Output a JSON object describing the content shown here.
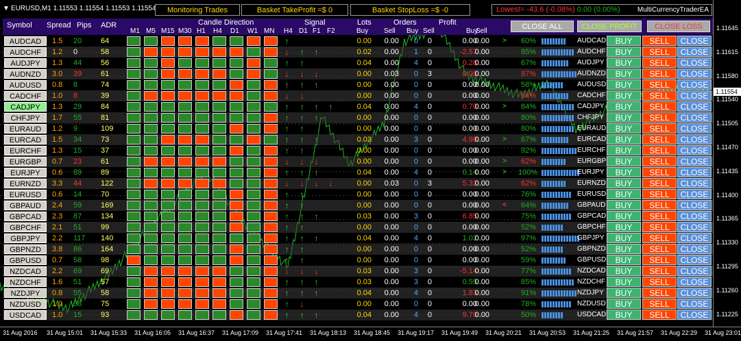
{
  "topbar": {
    "symbol_title": "EURUSD,M1  1.11553 1.11554 1.11553 1.11554",
    "monitoring": "Monitoring Trades",
    "basket_tp": "Basket TakeProfit =$ 0",
    "basket_sl": "Basket StopLoss =$ -0",
    "lowest_label": "Lowest= -43.6",
    "lowest_pct": "(-0.08%)",
    "highest_part": "0.00 (0.00%)",
    "ea_name": "MultiCurrencyTraderEA"
  },
  "header": {
    "symbol": "Symbol",
    "spread": "Spread",
    "pips": "Pips",
    "adr": "ADR",
    "candle_direction": "Candle Direction",
    "timeframes": [
      "M1",
      "M5",
      "M15",
      "M30",
      "H1",
      "H4",
      "D1",
      "W1",
      "MN"
    ],
    "signal": "Signal",
    "signal_cols": [
      "H4",
      "D1",
      "F1",
      "F2"
    ],
    "lots": "Lots",
    "orders": "Orders",
    "profit": "Profit",
    "buy": "Buy",
    "sell": "Sell",
    "close_all": "CLOSE ALL",
    "close_profit": "CLOSE PROFIT",
    "close_loss": "CLOSE LOSS"
  },
  "buttons": {
    "buy": "BUY",
    "sell": "SELL",
    "close": "CLOSE"
  },
  "colors": {
    "green": "#2a8a2a",
    "orange": "#ff4500",
    "buy_btn": "#3cb371",
    "close_btn": "#5a8fd8"
  },
  "rows": [
    {
      "sym": "AUDCAD",
      "spread": "1.5",
      "pips": "20",
      "pips_c": "#1fae1f",
      "adr": "64",
      "candles": "ggoooggoo",
      "sig": [
        "u",
        "",
        "",
        ""
      ],
      "lb": "0.00",
      "ls": "0.00",
      "ob": "0",
      "os": "0",
      "pb": "0.00",
      "pb_c": "#ffffff",
      "ps": "0.00",
      "tri": ">",
      "tri_c": "#1fae1f",
      "pct": "60%",
      "pct_c": "#1fae1f",
      "bars": 9,
      "pair": "AUDCAD"
    },
    {
      "sym": "AUDCHF",
      "spread": "1.2",
      "pips": "0",
      "pips_c": "#ffffff",
      "adr": "58",
      "candles": "goooooogo",
      "sig": [
        "d",
        "u",
        "u",
        ""
      ],
      "lb": "0.02",
      "ls": "0.00",
      "ob": "1",
      "os": "0",
      "pb": "-2.57",
      "pb_c": "#ff3030",
      "ps": "0.00",
      "tri": "",
      "tri_c": "",
      "pct": "85%",
      "pct_c": "#1fae1f",
      "bars": 12,
      "pair": "AUDCHF"
    },
    {
      "sym": "AUDJPY",
      "spread": "1.3",
      "pips": "44",
      "pips_c": "#1fae1f",
      "adr": "56",
      "candles": "ggoggggog",
      "sig": [
        "u",
        "u",
        "",
        ""
      ],
      "lb": "0.04",
      "ls": "0.00",
      "ob": "4",
      "os": "0",
      "pb": "0.28",
      "pb_c": "#ff3030",
      "ps": "0.00",
      "tri": "",
      "tri_c": "",
      "pct": "67%",
      "pct_c": "#1fae1f",
      "bars": 10,
      "pair": "AUDJPY"
    },
    {
      "sym": "AUDNZD",
      "spread": "3.0",
      "pips": "39",
      "pips_c": "#ff3030",
      "adr": "61",
      "candles": "ggoooogog",
      "sig": [
        "d",
        "d",
        "d",
        ""
      ],
      "lb": "0.00",
      "ls": "0.03",
      "ob": "0",
      "os": "3",
      "pb": "0.08",
      "pb_c": "#ff3030",
      "ps": "0.00",
      "tri": "",
      "tri_c": "",
      "pct": "87%",
      "pct_c": "#ff3030",
      "bars": 13,
      "pair": "AUDNZD"
    },
    {
      "sym": "AUDUSD",
      "spread": "0.8",
      "pips": "8",
      "pips_c": "#1fae1f",
      "adr": "74",
      "candles": "ggggggogo",
      "sig": [
        "u",
        "u",
        "u",
        ""
      ],
      "lb": "0.00",
      "ls": "0.00",
      "ob": "0",
      "os": "0",
      "pb": "0.00",
      "pb_c": "#ffffff",
      "ps": "0.00",
      "tri": "",
      "tri_c": "",
      "pct": "58%",
      "pct_c": "#1fae1f",
      "bars": 8,
      "pair": "AUDUSD"
    },
    {
      "sym": "CADCHF",
      "spread": "1.0",
      "pips": "8",
      "pips_c": "#ff3030",
      "adr": "39",
      "candles": "goooooogo",
      "sig": [
        "d",
        "d",
        "",
        ""
      ],
      "lb": "0.00",
      "ls": "0.00",
      "ob": "0",
      "os": "0",
      "pb": "0.00",
      "pb_c": "#ffffff",
      "ps": "0.00",
      "tri": "",
      "tri_c": "",
      "pct": "64%",
      "pct_c": "#ff3030",
      "bars": 10,
      "pair": "CADCHF"
    },
    {
      "sym": "CADJPY",
      "spread": "1.3",
      "pips": "29",
      "pips_c": "#1fae1f",
      "adr": "84",
      "candles": "ggggggggg",
      "sig": [
        "u",
        "u",
        "u",
        "u"
      ],
      "lb": "0.04",
      "ls": "0.00",
      "ob": "4",
      "os": "0",
      "pb": "0.70",
      "pb_c": "#ff3030",
      "ps": "0.00",
      "tri": ">",
      "tri_c": "#1fae1f",
      "pct": "84%",
      "pct_c": "#1fae1f",
      "bars": 12,
      "pair": "CADJPY",
      "selected": true
    },
    {
      "sym": "CHFJPY",
      "spread": "1.7",
      "pips": "55",
      "pips_c": "#1fae1f",
      "adr": "81",
      "candles": "ggggggggo",
      "sig": [
        "u",
        "u",
        "u",
        ""
      ],
      "lb": "0.00",
      "ls": "0.00",
      "ob": "0",
      "os": "0",
      "pb": "0.00",
      "pb_c": "#ffffff",
      "ps": "0.00",
      "tri": "",
      "tri_c": "",
      "pct": "80%",
      "pct_c": "#1fae1f",
      "bars": 12,
      "pair": "CHFJPY"
    },
    {
      "sym": "EURAUD",
      "spread": "1.2",
      "pips": "9",
      "pips_c": "#1fae1f",
      "adr": "109",
      "candles": "ggggggogo",
      "sig": [
        "u",
        "u",
        "",
        ""
      ],
      "lb": "0.00",
      "ls": "0.00",
      "ob": "0",
      "os": "0",
      "pb": "0.00",
      "pb_c": "#ffffff",
      "ps": "0.00",
      "tri": "",
      "tri_c": "",
      "pct": "80%",
      "pct_c": "#1fae1f",
      "bars": 12,
      "pair": "EURAUD"
    },
    {
      "sym": "EURCAD",
      "spread": "1.5",
      "pips": "34",
      "pips_c": "#1fae1f",
      "adr": "73",
      "candles": "ggoooggog",
      "sig": [
        "u",
        "u",
        "u",
        ""
      ],
      "lb": "0.03",
      "ls": "0.00",
      "ob": "3",
      "os": "0",
      "pb": "4.98",
      "pb_c": "#ff3030",
      "ps": "0.00",
      "tri": ">",
      "tri_c": "#1fae1f",
      "pct": "67%",
      "pct_c": "#1fae1f",
      "bars": 10,
      "pair": "EURCAD"
    },
    {
      "sym": "EURCHF",
      "spread": "1.3",
      "pips": "15",
      "pips_c": "#1fae1f",
      "adr": "37",
      "candles": "ggggggogo",
      "sig": [
        "u",
        "u",
        "",
        ""
      ],
      "lb": "0.00",
      "ls": "0.00",
      "ob": "0",
      "os": "0",
      "pb": "0.00",
      "pb_c": "#ffffff",
      "ps": "0.00",
      "tri": "",
      "tri_c": "",
      "pct": "92%",
      "pct_c": "#1fae1f",
      "bars": 13,
      "pair": "EURCHF"
    },
    {
      "sym": "EURGBP",
      "spread": "0.7",
      "pips": "23",
      "pips_c": "#ff3030",
      "adr": "61",
      "candles": "goooooggo",
      "sig": [
        "d",
        "d",
        "d",
        ""
      ],
      "lb": "0.00",
      "ls": "0.00",
      "ob": "0",
      "os": "0",
      "pb": "0.00",
      "pb_c": "#ffffff",
      "ps": "0.00",
      "tri": ">",
      "tri_c": "#1fae1f",
      "pct": "62%",
      "pct_c": "#ff3030",
      "bars": 9,
      "pair": "EURGBP"
    },
    {
      "sym": "EURJPY",
      "spread": "0.6",
      "pips": "89",
      "pips_c": "#1fae1f",
      "adr": "89",
      "candles": "ggggggggo",
      "sig": [
        "u",
        "u",
        "u",
        ""
      ],
      "lb": "0.04",
      "ls": "0.00",
      "ob": "4",
      "os": "0",
      "pb": "0.14",
      "pb_c": "#1fae1f",
      "ps": "0.00",
      "tri": ">",
      "tri_c": "#1fae1f",
      "pct": "100%",
      "pct_c": "#1fae1f",
      "bars": 14,
      "pair": "EURJPY"
    },
    {
      "sym": "EURNZD",
      "spread": "3.3",
      "pips": "44",
      "pips_c": "#ff3030",
      "adr": "122",
      "candles": "goooooggo",
      "sig": [
        "d",
        "d",
        "d",
        "d"
      ],
      "lb": "0.00",
      "ls": "0.03",
      "ob": "0",
      "os": "3",
      "pb": "5.32",
      "pb_c": "#ff3030",
      "ps": "0.00",
      "tri": "",
      "tri_c": "",
      "pct": "62%",
      "pct_c": "#ff3030",
      "bars": 9,
      "pair": "EURNZD"
    },
    {
      "sym": "EURUSD",
      "spread": "0.6",
      "pips": "14",
      "pips_c": "#1fae1f",
      "adr": "70",
      "candles": "ggggggogo",
      "sig": [
        "u",
        "u",
        "",
        ""
      ],
      "lb": "0.00",
      "ls": "0.00",
      "ob": "0",
      "os": "0",
      "pb": "0.00",
      "pb_c": "#ffffff",
      "ps": "0.00",
      "tri": "",
      "tri_c": "",
      "pct": "76%",
      "pct_c": "#1fae1f",
      "bars": 11,
      "pair": "EURUSD"
    },
    {
      "sym": "GBPAUD",
      "spread": "2.4",
      "pips": "59",
      "pips_c": "#1fae1f",
      "adr": "169",
      "candles": "ggggggogo",
      "sig": [
        "u",
        "u",
        "",
        ""
      ],
      "lb": "0.00",
      "ls": "0.00",
      "ob": "0",
      "os": "0",
      "pb": "0.00",
      "pb_c": "#ffffff",
      "ps": "0.00",
      "tri": "<",
      "tri_c": "#ff3030",
      "pct": "64%",
      "pct_c": "#1fae1f",
      "bars": 10,
      "pair": "GBPAUD"
    },
    {
      "sym": "GBPCAD",
      "spread": "2.3",
      "pips": "87",
      "pips_c": "#1fae1f",
      "adr": "134",
      "candles": "ggggggogo",
      "sig": [
        "u",
        "u",
        "u",
        ""
      ],
      "lb": "0.03",
      "ls": "0.00",
      "ob": "3",
      "os": "0",
      "pb": "6.85",
      "pb_c": "#ff3030",
      "ps": "0.00",
      "tri": "",
      "tri_c": "",
      "pct": "75%",
      "pct_c": "#1fae1f",
      "bars": 11,
      "pair": "GBPCAD"
    },
    {
      "sym": "GBPCHF",
      "spread": "2.1",
      "pips": "51",
      "pips_c": "#1fae1f",
      "adr": "99",
      "candles": "ggggggogo",
      "sig": [
        "u",
        "u",
        "",
        ""
      ],
      "lb": "0.00",
      "ls": "0.00",
      "ob": "0",
      "os": "0",
      "pb": "0.00",
      "pb_c": "#ffffff",
      "ps": "0.00",
      "tri": "",
      "tri_c": "",
      "pct": "52%",
      "pct_c": "#1fae1f",
      "bars": 8,
      "pair": "GBPCHF"
    },
    {
      "sym": "GBPJPY",
      "spread": "2.2",
      "pips": "117",
      "pips_c": "#1fae1f",
      "adr": "140",
      "candles": "ggggggggo",
      "sig": [
        "u",
        "u",
        "u",
        ""
      ],
      "lb": "0.04",
      "ls": "0.00",
      "ob": "4",
      "os": "0",
      "pb": "1.02",
      "pb_c": "#1fae1f",
      "ps": "0.00",
      "tri": "",
      "tri_c": "",
      "pct": "97%",
      "pct_c": "#1fae1f",
      "bars": 14,
      "pair": "GBPJPY"
    },
    {
      "sym": "GBPNZD",
      "spread": "3.8",
      "pips": "86",
      "pips_c": "#1fae1f",
      "adr": "164",
      "candles": "ggggggogo",
      "sig": [
        "u",
        "u",
        "",
        ""
      ],
      "lb": "0.00",
      "ls": "0.00",
      "ob": "0",
      "os": "0",
      "pb": "0.00",
      "pb_c": "#ffffff",
      "ps": "0.00",
      "tri": "",
      "tri_c": "",
      "pct": "52%",
      "pct_c": "#1fae1f",
      "bars": 8,
      "pair": "GBPNZD"
    },
    {
      "sym": "GBPUSD",
      "spread": "0.7",
      "pips": "58",
      "pips_c": "#1fae1f",
      "adr": "98",
      "candles": "ogggggogo",
      "sig": [
        "u",
        "u",
        "",
        ""
      ],
      "lb": "0.00",
      "ls": "0.00",
      "ob": "0",
      "os": "0",
      "pb": "0.00",
      "pb_c": "#ffffff",
      "ps": "0.00",
      "tri": "",
      "tri_c": "",
      "pct": "59%",
      "pct_c": "#1fae1f",
      "bars": 9,
      "pair": "GBPUSD"
    },
    {
      "sym": "NZDCAD",
      "spread": "2.2",
      "pips": "69",
      "pips_c": "#1fae1f",
      "adr": "69",
      "candles": "goooooggo",
      "sig": [
        "d",
        "d",
        "d",
        ""
      ],
      "lb": "0.03",
      "ls": "0.00",
      "ob": "3",
      "os": "0",
      "pb": "-5.14",
      "pb_c": "#ff3030",
      "ps": "0.00",
      "tri": "",
      "tri_c": "",
      "pct": "77%",
      "pct_c": "#1fae1f",
      "bars": 11,
      "pair": "NZDCAD"
    },
    {
      "sym": "NZDCHF",
      "spread": "1.6",
      "pips": "51",
      "pips_c": "#1fae1f",
      "adr": "57",
      "candles": "goooooggo",
      "sig": [
        "u",
        "u",
        "u",
        ""
      ],
      "lb": "0.03",
      "ls": "0.00",
      "ob": "3",
      "os": "0",
      "pb": "0.55",
      "pb_c": "#1fae1f",
      "ps": "0.00",
      "tri": "",
      "tri_c": "",
      "pct": "85%",
      "pct_c": "#1fae1f",
      "bars": 12,
      "pair": "NZDCHF"
    },
    {
      "sym": "NZDJPY",
      "spread": "0.8",
      "pips": "55",
      "pips_c": "#1fae1f",
      "adr": "58",
      "candles": "goooooggo",
      "sig": [
        "u",
        "u",
        "u",
        ""
      ],
      "lb": "0.04",
      "ls": "0.00",
      "ob": "4",
      "os": "0",
      "pb": "1.83",
      "pb_c": "#ff3030",
      "ps": "0.00",
      "tri": "",
      "tri_c": "",
      "pct": "91%",
      "pct_c": "#1fae1f",
      "bars": 13,
      "pair": "NZDJPY"
    },
    {
      "sym": "NZDUSD",
      "spread": "1.0",
      "pips": "58",
      "pips_c": "#1fae1f",
      "adr": "75",
      "candles": "goooooggo",
      "sig": [
        "u",
        "d",
        "",
        ""
      ],
      "lb": "0.00",
      "ls": "0.00",
      "ob": "0",
      "os": "0",
      "pb": "0.00",
      "pb_c": "#ffffff",
      "ps": "0.00",
      "tri": "",
      "tri_c": "",
      "pct": "78%",
      "pct_c": "#1fae1f",
      "bars": 11,
      "pair": "NZDUSD"
    },
    {
      "sym": "USDCAD",
      "spread": "1.0",
      "pips": "15",
      "pips_c": "#1fae1f",
      "adr": "93",
      "candles": "ggggggogo",
      "sig": [
        "u",
        "u",
        "u",
        ""
      ],
      "lb": "0.04",
      "ls": "0.00",
      "ob": "4",
      "os": "0",
      "pb": "9.70",
      "pb_c": "#ff3030",
      "ps": "0.00",
      "tri": "",
      "tri_c": "",
      "pct": "50%",
      "pct_c": "#1fae1f",
      "bars": 8,
      "pair": "USDCAD"
    }
  ],
  "price_scale": {
    "labels": [
      "1.11645",
      "1.11615",
      "1.11580",
      "1.11540",
      "1.11505",
      "1.11470",
      "1.11435",
      "1.11400",
      "1.11365",
      "1.11330",
      "1.11295",
      "1.11260",
      "1.11225"
    ],
    "current": "1.11554"
  },
  "time_scale": [
    "31 Aug 2016",
    "31 Aug 15:01",
    "31 Aug 15:33",
    "31 Aug 16:05",
    "31 Aug 16:37",
    "31 Aug 17:09",
    "31 Aug 17:41",
    "31 Aug 18:13",
    "31 Aug 18:45",
    "31 Aug 19:17",
    "31 Aug 19:49",
    "31 Aug 20:21",
    "31 Aug 20:53",
    "31 Aug 21:25",
    "31 Aug 21:57",
    "31 Aug 22:29",
    "31 Aug 23:01"
  ]
}
